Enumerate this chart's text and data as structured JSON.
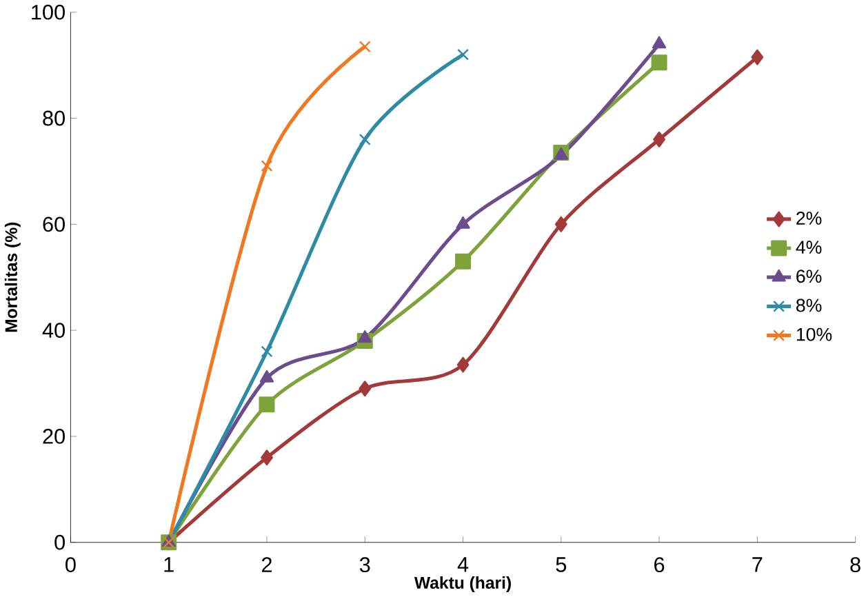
{
  "chart_data": {
    "type": "line",
    "xlabel": "Waktu (hari)",
    "ylabel": "Mortalitas (%)",
    "xlim": [
      0,
      8
    ],
    "ylim": [
      0,
      100
    ],
    "xticks": [
      0,
      1,
      2,
      3,
      4,
      5,
      6,
      7,
      8
    ],
    "yticks": [
      0,
      20,
      40,
      60,
      80,
      100
    ],
    "grid": false,
    "legend": "right",
    "line_style": "solid",
    "series": [
      {
        "name": "2%",
        "color": "#a33a3a",
        "marker": "diamond",
        "x": [
          1,
          2,
          3,
          4,
          5,
          6,
          7
        ],
        "values": [
          0,
          16,
          29,
          33.5,
          60,
          76,
          91.5
        ]
      },
      {
        "name": "4%",
        "color": "#7da33a",
        "marker": "square",
        "x": [
          1,
          2,
          3,
          4,
          5,
          6
        ],
        "values": [
          0,
          26,
          38,
          53,
          73.5,
          90.5
        ]
      },
      {
        "name": "6%",
        "color": "#6b4c8c",
        "marker": "triangle",
        "x": [
          1,
          2,
          3,
          4,
          5,
          6
        ],
        "values": [
          0,
          31,
          38.5,
          60,
          73,
          94
        ]
      },
      {
        "name": "8%",
        "color": "#2e8ba6",
        "marker": "cross",
        "x": [
          1,
          2,
          3,
          4
        ],
        "values": [
          0,
          36,
          76,
          92
        ]
      },
      {
        "name": "10%",
        "color": "#f07820",
        "marker": "cross",
        "x": [
          1,
          2,
          3
        ],
        "values": [
          0,
          71,
          93.5
        ]
      }
    ]
  }
}
